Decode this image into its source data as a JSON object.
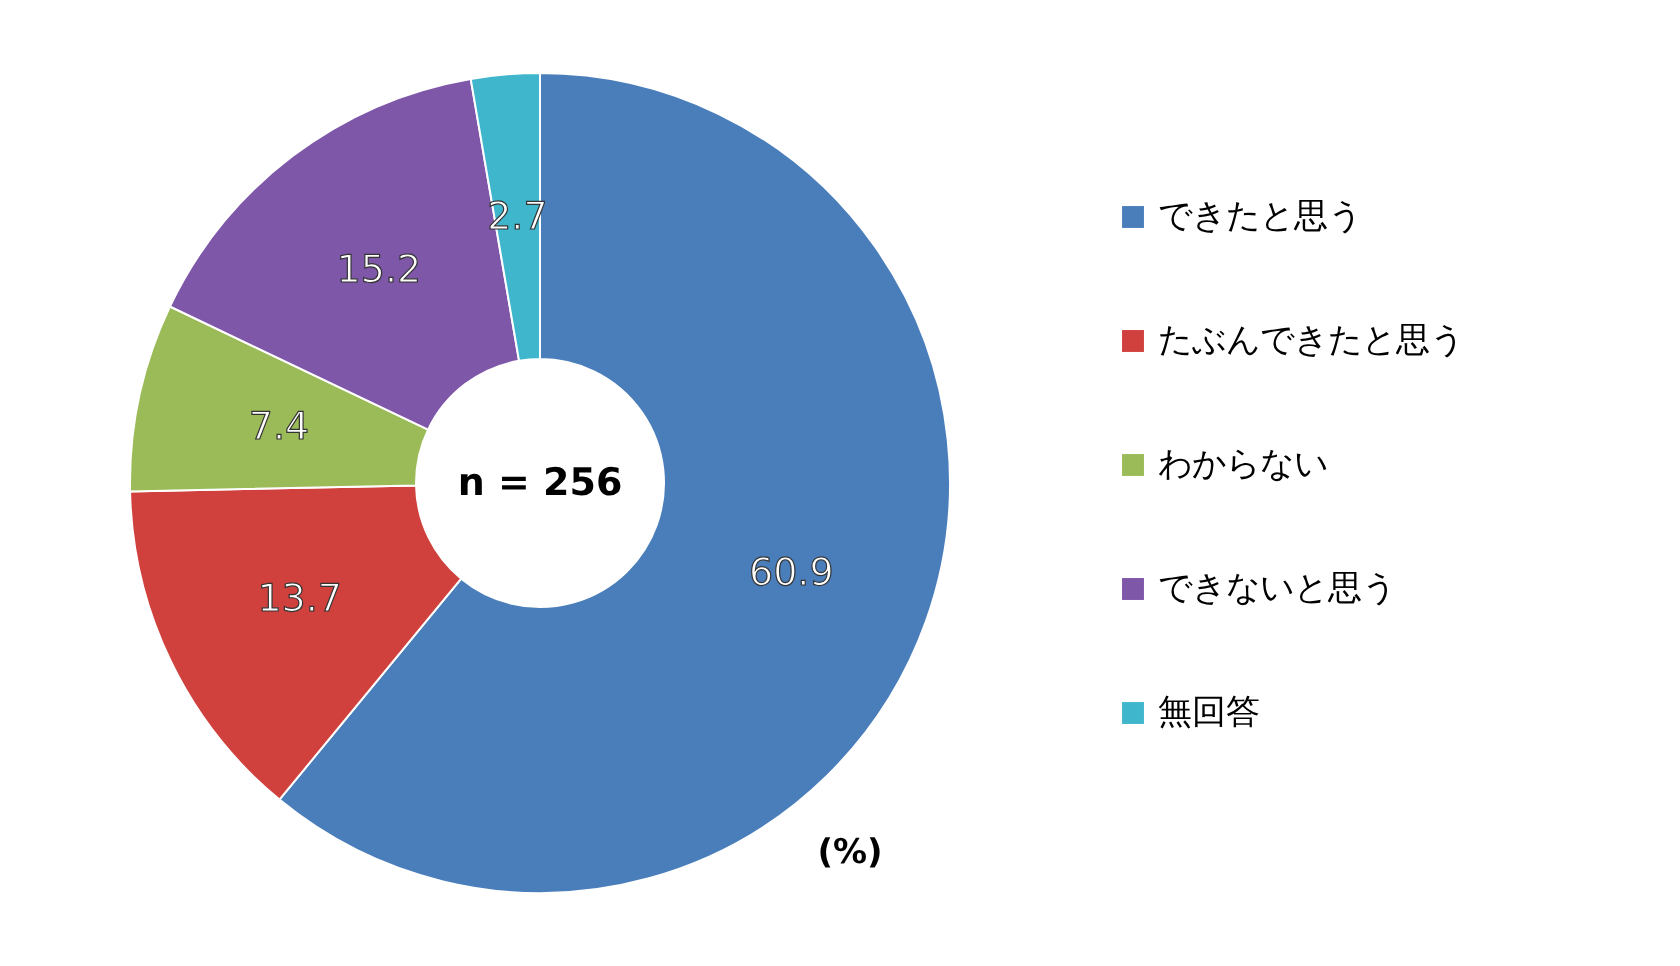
{
  "chart_data": {
    "type": "donut",
    "categories": [
      "できたと思う",
      "たぶんできたと思う",
      "わからない",
      "できないと思う",
      "無回答"
    ],
    "values": [
      60.9,
      13.7,
      7.4,
      15.2,
      2.7
    ],
    "colors": [
      "#4a7ebb",
      "#d0403c",
      "#9bbb59",
      "#7e57a8",
      "#3fb6cc"
    ],
    "data_labels": true,
    "legend": "right",
    "annotations": [
      "n = 256",
      "(%)"
    ]
  }
}
